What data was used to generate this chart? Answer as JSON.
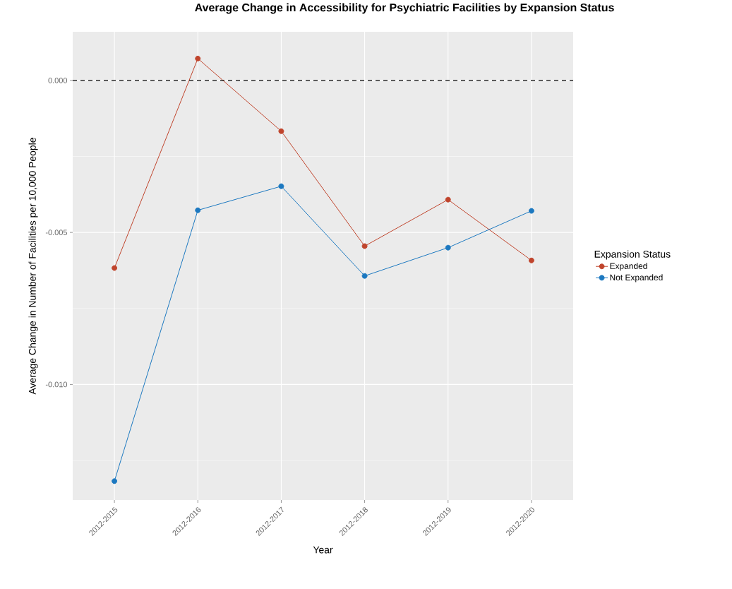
{
  "chart_data": {
    "type": "line",
    "title": "Average Change in Accessibility for Psychiatric Facilities by Expansion Status",
    "xlabel": "Year",
    "ylabel": "Average Change in Number of Facilities per 10,000 People",
    "legend_title": "Expansion Status",
    "categories": [
      "2012-2015",
      "2012-2016",
      "2012-2017",
      "2012-2018",
      "2012-2019",
      "2012-2020"
    ],
    "series": [
      {
        "name": "Expanded",
        "color": "#c0442c",
        "values": [
          -0.00617,
          0.00072,
          -0.00167,
          -0.00545,
          -0.00392,
          -0.00592
        ]
      },
      {
        "name": "Not Expanded",
        "color": "#1c78c0",
        "values": [
          -0.01318,
          -0.00427,
          -0.00348,
          -0.00643,
          -0.0055,
          -0.00429
        ]
      }
    ],
    "ylim": [
      -0.0138,
      0.0016
    ],
    "yticks": [
      {
        "value": -0.01,
        "label": "-0.010"
      },
      {
        "value": -0.005,
        "label": "-0.005"
      },
      {
        "value": 0,
        "label": "0.000"
      }
    ],
    "ref_lines": [
      {
        "axis": "y",
        "value": 0,
        "color": "#000000",
        "line_style": "dashed"
      }
    ],
    "grid": true,
    "legend": "right",
    "marker": "circle",
    "line_style": "solid"
  }
}
